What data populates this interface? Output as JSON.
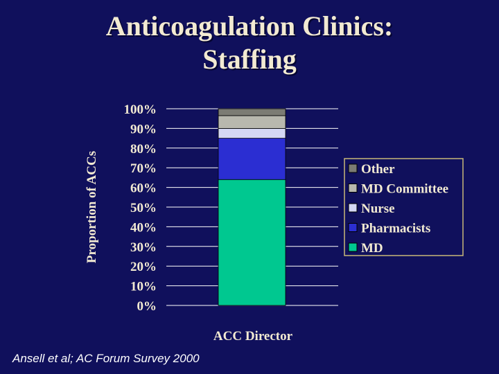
{
  "slide": {
    "title_line1": "Anticoagulation Clinics:",
    "title_line2": "Staffing",
    "source": "Ansell et al; AC Forum Survey 2000"
  },
  "colors": {
    "background": "#10105c",
    "text": "#f2ead2",
    "gridline": "#ffffff"
  },
  "chart_data": {
    "type": "bar",
    "stacked": true,
    "categories": [
      "ACC Director"
    ],
    "series": [
      {
        "name": "MD",
        "values": [
          64
        ],
        "color": "#00c890"
      },
      {
        "name": "Pharmacists",
        "values": [
          21
        ],
        "color": "#2b2ed2"
      },
      {
        "name": "Nurse",
        "values": [
          5
        ],
        "color": "#d4d8f4"
      },
      {
        "name": "MD Committee",
        "values": [
          6.5
        ],
        "color": "#b8b8ae"
      },
      {
        "name": "Other",
        "values": [
          3.5
        ],
        "color": "#7c7c74"
      }
    ],
    "title": "",
    "xlabel": "ACC Director",
    "ylabel": "Proportion of ACCs",
    "ylim": [
      0,
      100
    ],
    "yticks": [
      "0%",
      "10%",
      "20%",
      "30%",
      "40%",
      "50%",
      "60%",
      "70%",
      "80%",
      "90%",
      "100%"
    ],
    "grid": true,
    "legend": {
      "position": "right",
      "order": [
        "Other",
        "MD Committee",
        "Nurse",
        "Pharmacists",
        "MD"
      ]
    }
  }
}
